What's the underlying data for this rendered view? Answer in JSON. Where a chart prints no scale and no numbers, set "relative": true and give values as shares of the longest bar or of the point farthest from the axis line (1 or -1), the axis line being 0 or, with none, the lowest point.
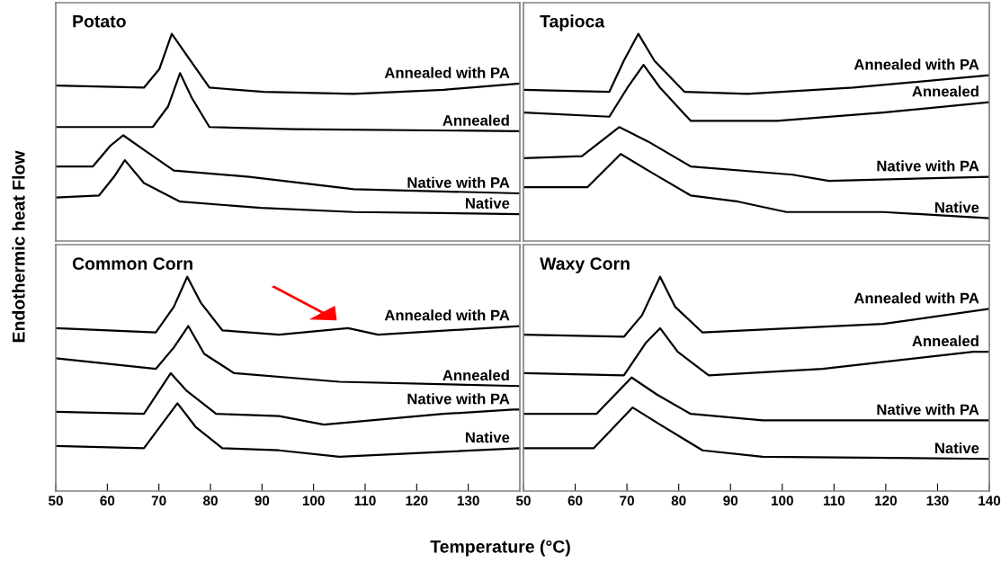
{
  "chart_data": [
    {
      "type": "line",
      "title": "Potato",
      "ylabel": "Endothermic heat Flow",
      "relative": true,
      "xlim": [
        50,
        140
      ],
      "tick_labels": false,
      "legend": false,
      "grid": false,
      "series": [
        {
          "name": "Annealed with PA",
          "color": "#000000",
          "x": [
            50,
            67.1,
            70.1,
            72.5,
            75.3,
            79.8,
            90.3,
            107.8,
            125.2,
            140
          ],
          "values": [
            0.75,
            0.74,
            0.83,
            1.0,
            0.9,
            0.74,
            0.72,
            0.71,
            0.73,
            0.76
          ]
        },
        {
          "name": "Annealed",
          "color": "#000000",
          "x": [
            50,
            68.8,
            71.8,
            74.1,
            76.4,
            79.8,
            96.2,
            140
          ],
          "values": [
            0.55,
            0.55,
            0.65,
            0.81,
            0.69,
            0.55,
            0.54,
            0.53
          ]
        },
        {
          "name": "Native with PA",
          "color": "#000000",
          "x": [
            50,
            57.2,
            60.6,
            63.1,
            67.1,
            72.9,
            87.5,
            107.8,
            140
          ],
          "values": [
            0.36,
            0.36,
            0.46,
            0.51,
            0.44,
            0.34,
            0.31,
            0.25,
            0.23
          ]
        },
        {
          "name": "Native",
          "color": "#000000",
          "x": [
            50,
            58.4,
            61.3,
            63.4,
            67.1,
            74.1,
            89.8,
            107.8,
            140
          ],
          "values": [
            0.21,
            0.22,
            0.31,
            0.39,
            0.28,
            0.19,
            0.16,
            0.14,
            0.13
          ]
        }
      ]
    },
    {
      "type": "line",
      "title": "Tapioca",
      "relative": true,
      "xlim": [
        50,
        140
      ],
      "tick_labels": false,
      "legend": false,
      "grid": false,
      "series": [
        {
          "name": "Annealed with PA",
          "color": "#000000",
          "x": [
            50,
            66.6,
            69.4,
            72.2,
            75.3,
            81.1,
            93.3,
            113.7,
            140
          ],
          "values": [
            0.73,
            0.72,
            0.87,
            1.0,
            0.87,
            0.72,
            0.71,
            0.74,
            0.8
          ]
        },
        {
          "name": "Annealed",
          "color": "#000000",
          "x": [
            50,
            66.6,
            70.1,
            73.2,
            76.4,
            82.3,
            99.0,
            119.5,
            140
          ],
          "values": [
            0.62,
            0.6,
            0.74,
            0.85,
            0.74,
            0.58,
            0.58,
            0.62,
            0.67
          ]
        },
        {
          "name": "Native with PA",
          "color": "#000000",
          "x": [
            50,
            61.3,
            68.5,
            74.1,
            82.3,
            102.0,
            109.0,
            140
          ],
          "values": [
            0.4,
            0.41,
            0.55,
            0.48,
            0.36,
            0.32,
            0.29,
            0.31
          ]
        },
        {
          "name": "Native",
          "color": "#000000",
          "x": [
            50,
            62.4,
            68.8,
            74.1,
            82.3,
            91.5,
            100.8,
            119.5,
            140
          ],
          "values": [
            0.26,
            0.26,
            0.42,
            0.34,
            0.22,
            0.19,
            0.14,
            0.14,
            0.11
          ]
        }
      ]
    },
    {
      "type": "line",
      "title": "Common Corn",
      "xlabel": "Temperature (°C)",
      "relative": true,
      "xlim": [
        50,
        140
      ],
      "xticks": [
        50,
        60,
        70,
        80,
        90,
        100,
        110,
        120,
        130
      ],
      "tick_labels": "x",
      "legend": false,
      "grid": false,
      "series": [
        {
          "name": "Annealed with PA",
          "color": "#000000",
          "x": [
            50,
            69.4,
            72.9,
            75.5,
            78.1,
            82.3,
            93.3,
            106.7,
            112.5,
            140
          ],
          "values": [
            0.76,
            0.74,
            0.86,
            1.0,
            0.88,
            0.75,
            0.73,
            0.76,
            0.73,
            0.77
          ]
        },
        {
          "name": "Annealed",
          "color": "#000000",
          "x": [
            50,
            69.4,
            72.9,
            75.7,
            78.8,
            84.6,
            105.0,
            140
          ],
          "values": [
            0.62,
            0.57,
            0.67,
            0.77,
            0.64,
            0.55,
            0.51,
            0.49
          ]
        },
        {
          "name": "Native with PA",
          "color": "#000000",
          "x": [
            50,
            67.1,
            72.3,
            75.3,
            81.1,
            93.3,
            102.0,
            125.2,
            138.7,
            140
          ],
          "values": [
            0.37,
            0.36,
            0.55,
            0.47,
            0.36,
            0.35,
            0.31,
            0.36,
            0.38,
            0.38
          ]
        },
        {
          "name": "Native",
          "color": "#000000",
          "x": [
            50,
            67.1,
            73.6,
            77.1,
            82.3,
            93.3,
            105.0,
            140
          ],
          "values": [
            0.21,
            0.2,
            0.41,
            0.3,
            0.2,
            0.19,
            0.16,
            0.2
          ]
        }
      ]
    },
    {
      "type": "line",
      "title": "Waxy Corn",
      "relative": true,
      "xlim": [
        50,
        140
      ],
      "xticks": [
        50,
        60,
        70,
        80,
        90,
        100,
        110,
        120,
        130,
        140
      ],
      "tick_labels": "x",
      "legend": false,
      "grid": false,
      "series": [
        {
          "name": "Annealed with PA",
          "color": "#000000",
          "x": [
            50,
            69.4,
            72.9,
            76.4,
            79.3,
            84.6,
            102.0,
            119.5,
            140
          ],
          "values": [
            0.73,
            0.72,
            0.82,
            1.0,
            0.86,
            0.74,
            0.76,
            0.78,
            0.85
          ]
        },
        {
          "name": "Annealed",
          "color": "#000000",
          "x": [
            50,
            69.4,
            73.6,
            76.4,
            79.8,
            85.8,
            107.8,
            136.9,
            140
          ],
          "values": [
            0.55,
            0.54,
            0.69,
            0.76,
            0.65,
            0.54,
            0.57,
            0.65,
            0.65
          ]
        },
        {
          "name": "Native with PA",
          "color": "#000000",
          "x": [
            50,
            64.1,
            70.9,
            75.8,
            82.3,
            96.2,
            140
          ],
          "values": [
            0.36,
            0.36,
            0.53,
            0.45,
            0.36,
            0.33,
            0.33
          ]
        },
        {
          "name": "Native",
          "color": "#000000",
          "x": [
            50,
            63.6,
            71.1,
            76.4,
            84.6,
            96.2,
            140
          ],
          "values": [
            0.2,
            0.2,
            0.39,
            0.31,
            0.19,
            0.16,
            0.15
          ]
        }
      ]
    }
  ]
}
